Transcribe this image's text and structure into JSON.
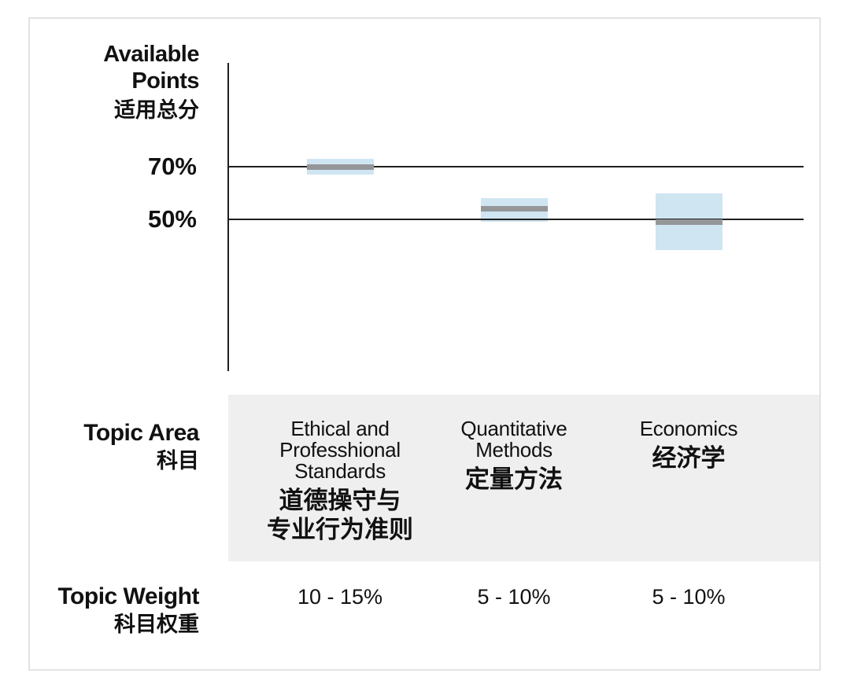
{
  "y_axis": {
    "title_lines": [
      "Available",
      "Points",
      "适用总分"
    ],
    "ticks": [
      {
        "label": "70%",
        "value": 70
      },
      {
        "label": "50%",
        "value": 50
      }
    ]
  },
  "topic_area_label": {
    "en": "Topic Area",
    "zh": "科目"
  },
  "topic_weight_label": {
    "en": "Topic Weight",
    "zh": "科目权重"
  },
  "topics": [
    {
      "en_lines": [
        "Ethical and",
        "Professhional",
        "Standards"
      ],
      "zh_lines": [
        "道德操守与",
        "专业行为准则"
      ],
      "weight": "10 - 15%"
    },
    {
      "en_lines": [
        "Quantitative",
        "Methods"
      ],
      "zh_lines": [
        "定量方法"
      ],
      "weight": "5 - 10%"
    },
    {
      "en_lines": [
        "Economics"
      ],
      "zh_lines": [
        "经济学"
      ],
      "weight": "5 - 10%"
    }
  ],
  "chart_data": {
    "type": "range-bar",
    "title": "Available Points 适用总分",
    "ylabel": "Available Points (适用总分)",
    "y_tick_labels": [
      "70%",
      "50%"
    ],
    "y_gridlines_pct": [
      70,
      50
    ],
    "categories": [
      "Ethical and Professhional Standards 道德操守与专业行为准则",
      "Quantitative Methods 定量方法",
      "Economics 经济学"
    ],
    "series": [
      {
        "name": "range_high_pct",
        "values": [
          73,
          58,
          60
        ]
      },
      {
        "name": "range_low_pct",
        "values": [
          67,
          49,
          38.5
        ]
      },
      {
        "name": "midline_pct",
        "values": [
          70,
          54,
          49
        ]
      }
    ],
    "topic_weights": [
      "10 - 15%",
      "5 - 10%",
      "5 - 10%"
    ],
    "legend_position": "none",
    "grid": "horizontal-lines-at-50-and-70"
  },
  "colors": {
    "range_fill": "#cfe5f2",
    "range_midline": "#949698",
    "band_background": "#efefef",
    "line": "#1f1f1f",
    "text": "#111111",
    "card_border": "#e3e3e3"
  }
}
